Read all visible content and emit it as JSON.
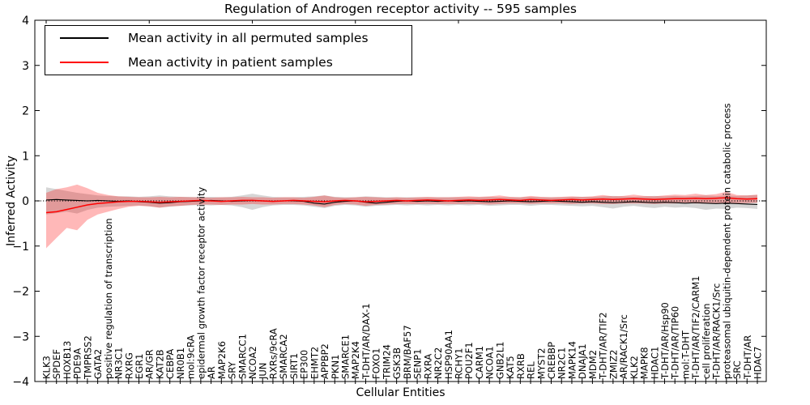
{
  "title": "Regulation of Androgen receptor activity -- 595 samples",
  "axes": {
    "ylabel": "Inferred Activity",
    "xlabel": "Cellular Entities",
    "ytick_labels": [
      "4",
      "3",
      "2",
      "1",
      "0",
      "−1",
      "−2",
      "−3",
      "−4"
    ]
  },
  "legend": {
    "entries": [
      {
        "label": "Mean activity in all permuted samples",
        "color": "#000000"
      },
      {
        "label": "Mean activity in patient samples",
        "color": "#ff0000"
      }
    ]
  },
  "chart_data": {
    "type": "line",
    "title": "Regulation of Androgen receptor activity -- 595 samples",
    "xlabel": "Cellular Entities",
    "ylabel": "Inferred Activity",
    "ylim": [
      -4,
      4
    ],
    "yticks": [
      4,
      3,
      2,
      1,
      0,
      -1,
      -2,
      -3,
      -4
    ],
    "grid": false,
    "legend_position": "upper left",
    "zero_line": "dotted-black",
    "categories": [
      "KLK3",
      "SPDEF",
      "HOXB13",
      "PDE9A",
      "TMPRSS2",
      "GATA2",
      "positive regulation of transcription",
      "NR3C1",
      "RXRG",
      "EGR1",
      "AR/GR",
      "KAT2B",
      "CEBPA",
      "NR0B1",
      "mol:9cRA",
      "epidermal growth factor receptor activity",
      "AR",
      "MAP2K6",
      "SRY",
      "SMARCC1",
      "NCOA2",
      "JUN",
      "RXRs/9cRA",
      "SMARCA2",
      "SIRT1",
      "EP300",
      "EHMT2",
      "APPBP2",
      "PKN1",
      "SMARCE1",
      "MAP2K4",
      "T-DHT/AR/DAX-1",
      "FOXO1",
      "TRIM24",
      "GSK3B",
      "BRM/BAF57",
      "SENP1",
      "RXRA",
      "NR2C2",
      "HSP90AA1",
      "RCHY1",
      "POU2F1",
      "CARM1",
      "NCOA1",
      "GNB2L1",
      "KAT5",
      "RXRB",
      "REL",
      "MYST2",
      "CREBBP",
      "NR2C1",
      "MAPK14",
      "DNAJA1",
      "MDM2",
      "T-DHT/AR/TIF2",
      "ZMIZ2",
      "AR/RACK1/Src",
      "KLK2",
      "MAPK8",
      "HDAC1",
      "T-DHT/AR/Hsp90",
      "T-DHT/AR/TIP60",
      "mol:T-DHT",
      "T-DHT/AR/TIF2/CARM1",
      "cell proliferation",
      "T-DHT/AR/RACK1/Src",
      "proteasomal ubiquitin-dependent protein catabolic process",
      "SRC",
      "T-DHT/AR",
      "HDAC7"
    ],
    "series": [
      {
        "name": "Mean activity in all permuted samples",
        "color": "#000000",
        "band_opacity": 0.16,
        "values": [
          0.02,
          0.03,
          0.02,
          0.01,
          0.0,
          0.01,
          0.0,
          -0.01,
          0.0,
          -0.02,
          -0.03,
          -0.05,
          -0.04,
          -0.02,
          -0.01,
          0.0,
          0.01,
          0.0,
          -0.01,
          0.0,
          0.01,
          0.0,
          -0.01,
          0.0,
          0.0,
          -0.01,
          -0.05,
          -0.07,
          -0.03,
          -0.01,
          0.0,
          -0.03,
          -0.05,
          -0.03,
          -0.01,
          0.0,
          -0.01,
          0.0,
          -0.01,
          0.0,
          -0.01,
          0.0,
          -0.01,
          -0.02,
          -0.01,
          0.0,
          -0.01,
          -0.02,
          -0.01,
          0.0,
          -0.01,
          -0.02,
          -0.03,
          -0.02,
          -0.03,
          -0.04,
          -0.03,
          -0.02,
          -0.03,
          -0.04,
          -0.03,
          -0.04,
          -0.05,
          -0.04,
          -0.05,
          -0.06,
          -0.05,
          -0.06,
          -0.07,
          -0.08
        ],
        "band_upper": [
          0.3,
          0.26,
          0.22,
          0.18,
          0.15,
          0.12,
          0.11,
          0.1,
          0.1,
          0.09,
          0.1,
          0.12,
          0.1,
          0.09,
          0.09,
          0.08,
          0.09,
          0.08,
          0.09,
          0.12,
          0.16,
          0.12,
          0.09,
          0.08,
          0.08,
          0.09,
          0.1,
          0.12,
          0.09,
          0.08,
          0.08,
          0.1,
          0.09,
          0.08,
          0.08,
          0.08,
          0.08,
          0.08,
          0.08,
          0.08,
          0.08,
          0.08,
          0.08,
          0.09,
          0.08,
          0.08,
          0.08,
          0.09,
          0.08,
          0.08,
          0.08,
          0.09,
          0.09,
          0.09,
          0.1,
          0.11,
          0.1,
          0.09,
          0.1,
          0.11,
          0.1,
          0.11,
          0.1,
          0.11,
          0.12,
          0.11,
          0.12,
          0.11,
          0.12,
          0.13
        ],
        "band_lower": [
          -0.3,
          -0.27,
          -0.24,
          -0.28,
          -0.2,
          -0.15,
          -0.13,
          -0.12,
          -0.11,
          -0.1,
          -0.12,
          -0.15,
          -0.13,
          -0.11,
          -0.1,
          -0.09,
          -0.1,
          -0.09,
          -0.1,
          -0.14,
          -0.2,
          -0.14,
          -0.1,
          -0.09,
          -0.09,
          -0.1,
          -0.13,
          -0.16,
          -0.11,
          -0.09,
          -0.1,
          -0.13,
          -0.11,
          -0.1,
          -0.09,
          -0.1,
          -0.09,
          -0.1,
          -0.09,
          -0.1,
          -0.09,
          -0.1,
          -0.09,
          -0.11,
          -0.1,
          -0.09,
          -0.09,
          -0.11,
          -0.09,
          -0.09,
          -0.1,
          -0.11,
          -0.12,
          -0.11,
          -0.14,
          -0.17,
          -0.13,
          -0.11,
          -0.14,
          -0.16,
          -0.13,
          -0.15,
          -0.14,
          -0.16,
          -0.2,
          -0.17,
          -0.18,
          -0.15,
          -0.16,
          -0.18
        ]
      },
      {
        "name": "Mean activity in patient samples",
        "color": "#ff0000",
        "band_opacity": 0.28,
        "values": [
          -0.26,
          -0.24,
          -0.19,
          -0.14,
          -0.09,
          -0.06,
          -0.04,
          -0.02,
          -0.01,
          -0.01,
          -0.02,
          -0.03,
          -0.02,
          -0.01,
          0.0,
          0.01,
          0.0,
          -0.01,
          0.0,
          0.01,
          0.01,
          0.0,
          -0.01,
          0.0,
          0.01,
          0.0,
          -0.01,
          -0.02,
          0.0,
          0.01,
          0.0,
          -0.02,
          -0.01,
          0.0,
          0.01,
          0.0,
          0.01,
          0.02,
          0.01,
          0.0,
          0.01,
          0.02,
          0.01,
          0.02,
          0.03,
          0.02,
          0.01,
          0.03,
          0.02,
          0.01,
          0.02,
          0.03,
          0.02,
          0.03,
          0.04,
          0.03,
          0.04,
          0.05,
          0.04,
          0.03,
          0.04,
          0.05,
          0.05,
          0.06,
          0.05,
          0.06,
          0.07,
          0.05,
          0.04,
          0.05
        ],
        "band_upper": [
          0.18,
          0.26,
          0.3,
          0.36,
          0.28,
          0.18,
          0.13,
          0.1,
          0.09,
          0.08,
          0.08,
          0.09,
          0.08,
          0.09,
          0.08,
          0.08,
          0.07,
          0.08,
          0.08,
          0.09,
          0.08,
          0.08,
          0.07,
          0.08,
          0.08,
          0.07,
          0.09,
          0.12,
          0.08,
          0.07,
          0.08,
          0.09,
          0.08,
          0.07,
          0.08,
          0.07,
          0.08,
          0.09,
          0.08,
          0.08,
          0.09,
          0.1,
          0.09,
          0.1,
          0.12,
          0.09,
          0.08,
          0.11,
          0.09,
          0.08,
          0.09,
          0.1,
          0.09,
          0.1,
          0.13,
          0.1,
          0.11,
          0.14,
          0.11,
          0.1,
          0.12,
          0.14,
          0.13,
          0.16,
          0.13,
          0.15,
          0.2,
          0.13,
          0.12,
          0.14
        ],
        "band_lower": [
          -1.05,
          -0.82,
          -0.6,
          -0.65,
          -0.42,
          -0.3,
          -0.24,
          -0.18,
          -0.13,
          -0.11,
          -0.12,
          -0.15,
          -0.12,
          -0.11,
          -0.09,
          -0.08,
          -0.08,
          -0.09,
          -0.08,
          -0.08,
          -0.07,
          -0.08,
          -0.08,
          -0.07,
          -0.07,
          -0.08,
          -0.1,
          -0.14,
          -0.09,
          -0.07,
          -0.08,
          -0.11,
          -0.09,
          -0.08,
          -0.07,
          -0.07,
          -0.07,
          -0.07,
          -0.07,
          -0.07,
          -0.07,
          -0.07,
          -0.07,
          -0.08,
          -0.07,
          -0.06,
          -0.06,
          -0.07,
          -0.06,
          -0.06,
          -0.06,
          -0.07,
          -0.06,
          -0.06,
          -0.07,
          -0.07,
          -0.06,
          -0.06,
          -0.06,
          -0.07,
          -0.06,
          -0.06,
          -0.05,
          -0.06,
          -0.06,
          -0.05,
          -0.06,
          -0.05,
          -0.05,
          -0.04
        ]
      }
    ]
  }
}
